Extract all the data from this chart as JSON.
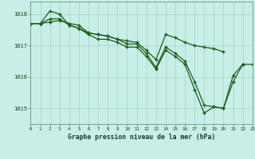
{
  "title": "Graphe pression niveau de la mer (hPa)",
  "background_color": "#c8eee8",
  "grid_color": "#a8d8d0",
  "line_color": "#1a5c1a",
  "xlim": [
    0,
    23
  ],
  "ylim": [
    1014.5,
    1018.4
  ],
  "yticks": [
    1015,
    1016,
    1017,
    1018
  ],
  "xticks": [
    0,
    1,
    2,
    3,
    4,
    5,
    6,
    7,
    8,
    9,
    10,
    11,
    12,
    13,
    14,
    15,
    16,
    17,
    18,
    19,
    20,
    21,
    22,
    23
  ],
  "figwidth": 3.2,
  "figheight": 2.0,
  "dpi": 100,
  "series": [
    [
      1017.7,
      1017.7,
      1017.75,
      1017.8,
      1017.7,
      1017.65,
      1017.4,
      1017.35,
      1017.3,
      1017.2,
      1017.15,
      1017.1,
      1016.85,
      1016.55,
      1017.35,
      1017.25,
      1017.1,
      1017.0,
      1016.95,
      1016.9,
      1016.8,
      null,
      null,
      null
    ],
    [
      1017.7,
      1017.7,
      1018.1,
      1018.0,
      1017.65,
      1017.55,
      1017.4,
      1017.35,
      1017.3,
      1017.2,
      1017.05,
      1017.05,
      1016.75,
      1016.3,
      1016.95,
      1016.75,
      1016.5,
      1015.85,
      1015.1,
      1015.05,
      1015.0,
      1016.05,
      1016.4,
      null
    ],
    [
      1017.7,
      1017.7,
      1017.85,
      1017.85,
      1017.65,
      1017.55,
      1017.35,
      1017.2,
      1017.2,
      1017.1,
      1016.95,
      1016.95,
      1016.65,
      1016.25,
      1016.85,
      1016.65,
      1016.4,
      1015.6,
      1014.85,
      1015.05,
      1015.0,
      1015.85,
      1016.4,
      1016.4
    ]
  ]
}
